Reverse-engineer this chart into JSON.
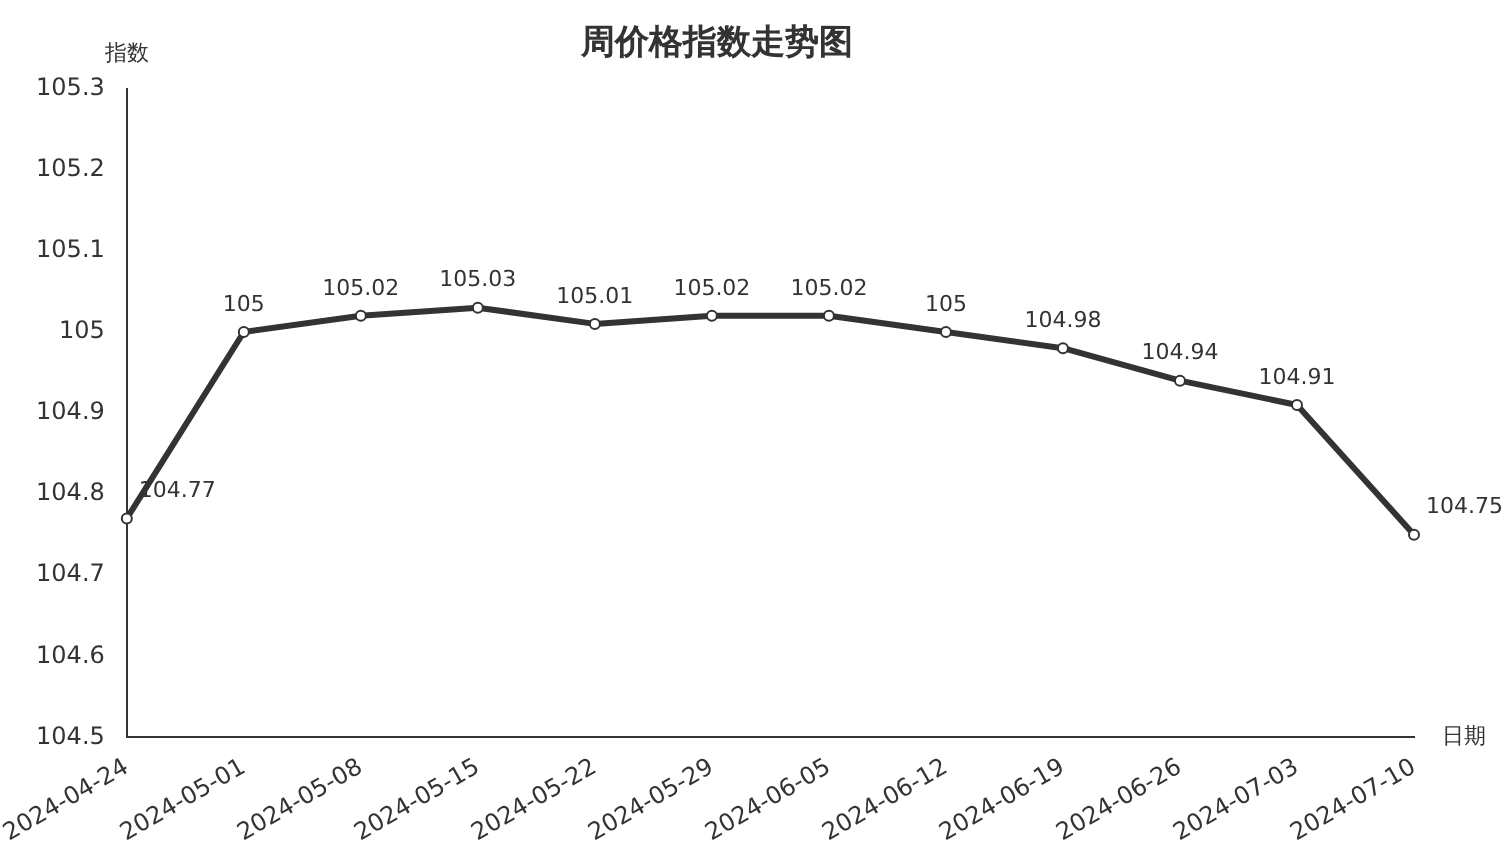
{
  "chart_data": {
    "type": "line",
    "title": "周价格指数走势图",
    "xlabel": "日期",
    "ylabel": "指数",
    "categories": [
      "2024-04-24",
      "2024-05-01",
      "2024-05-08",
      "2024-05-15",
      "2024-05-22",
      "2024-05-29",
      "2024-06-05",
      "2024-06-12",
      "2024-06-19",
      "2024-06-26",
      "2024-07-03",
      "2024-07-10"
    ],
    "series": [
      {
        "color": "#333333",
        "values": [
          104.77,
          105,
          105.02,
          105.03,
          105.01,
          105.02,
          105.02,
          105,
          104.98,
          104.94,
          104.91,
          104.75
        ]
      }
    ],
    "ylim": [
      104.5,
      105.3
    ],
    "yticks": [
      104.5,
      104.6,
      104.7,
      104.8,
      104.9,
      105,
      105.1,
      105.2,
      105.3
    ],
    "grid": false,
    "legend": false,
    "marker": "circle",
    "line_style": "solid",
    "data_labels": true
  }
}
